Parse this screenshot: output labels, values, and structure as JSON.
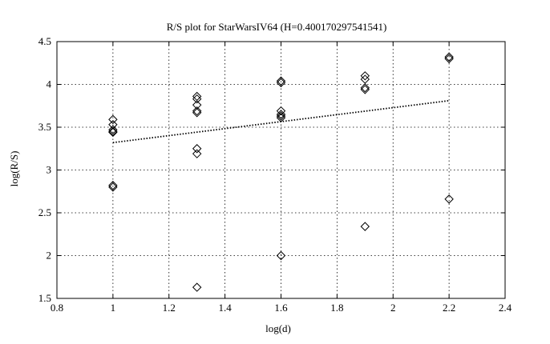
{
  "chart_data": {
    "type": "scatter",
    "title": "R/S plot for StarWarsIV64 (H=0.400170297541541)",
    "xlabel": "log(d)",
    "ylabel": "log(R/S)",
    "xlim": [
      0.8,
      2.4
    ],
    "ylim": [
      1.5,
      4.5
    ],
    "x_ticks": [
      "0.8",
      "1",
      "1.2",
      "1.4",
      "1.6",
      "1.8",
      "2",
      "2.2",
      "2.4"
    ],
    "y_ticks": [
      "1.5",
      "2",
      "2.5",
      "3",
      "3.5",
      "4",
      "4.5"
    ],
    "x_tick_values": [
      0.8,
      1.0,
      1.2,
      1.4,
      1.6,
      1.8,
      2.0,
      2.2,
      2.4
    ],
    "y_tick_values": [
      1.5,
      2.0,
      2.5,
      3.0,
      3.5,
      4.0,
      4.5
    ],
    "grid": true,
    "marker": "diamond",
    "point_color": "#000000",
    "series": [
      {
        "values": [
          {
            "x": 1.0,
            "y": 3.59
          },
          {
            "x": 1.0,
            "y": 3.53
          },
          {
            "x": 1.0,
            "y": 3.47
          },
          {
            "x": 1.0,
            "y": 3.45
          },
          {
            "x": 1.0,
            "y": 3.44
          },
          {
            "x": 1.0,
            "y": 2.82
          },
          {
            "x": 1.0,
            "y": 2.8
          },
          {
            "x": 1.3,
            "y": 3.86
          },
          {
            "x": 1.3,
            "y": 3.83
          },
          {
            "x": 1.3,
            "y": 3.76
          },
          {
            "x": 1.3,
            "y": 3.69
          },
          {
            "x": 1.3,
            "y": 3.67
          },
          {
            "x": 1.3,
            "y": 3.25
          },
          {
            "x": 1.3,
            "y": 3.19
          },
          {
            "x": 1.3,
            "y": 1.63
          },
          {
            "x": 1.6,
            "y": 4.04
          },
          {
            "x": 1.6,
            "y": 4.02
          },
          {
            "x": 1.6,
            "y": 3.69
          },
          {
            "x": 1.6,
            "y": 3.65
          },
          {
            "x": 1.6,
            "y": 3.63
          },
          {
            "x": 1.6,
            "y": 3.61
          },
          {
            "x": 1.6,
            "y": 2.0
          },
          {
            "x": 1.9,
            "y": 4.1
          },
          {
            "x": 1.9,
            "y": 4.06
          },
          {
            "x": 1.9,
            "y": 3.96
          },
          {
            "x": 1.9,
            "y": 3.94
          },
          {
            "x": 1.9,
            "y": 2.34
          },
          {
            "x": 2.2,
            "y": 4.32
          },
          {
            "x": 2.2,
            "y": 4.3
          },
          {
            "x": 2.2,
            "y": 2.66
          }
        ]
      }
    ],
    "fit_line": {
      "style": "dotted",
      "color": "#000000",
      "points": [
        {
          "x": 1.0,
          "y": 3.32
        },
        {
          "x": 2.2,
          "y": 3.81
        }
      ]
    }
  }
}
